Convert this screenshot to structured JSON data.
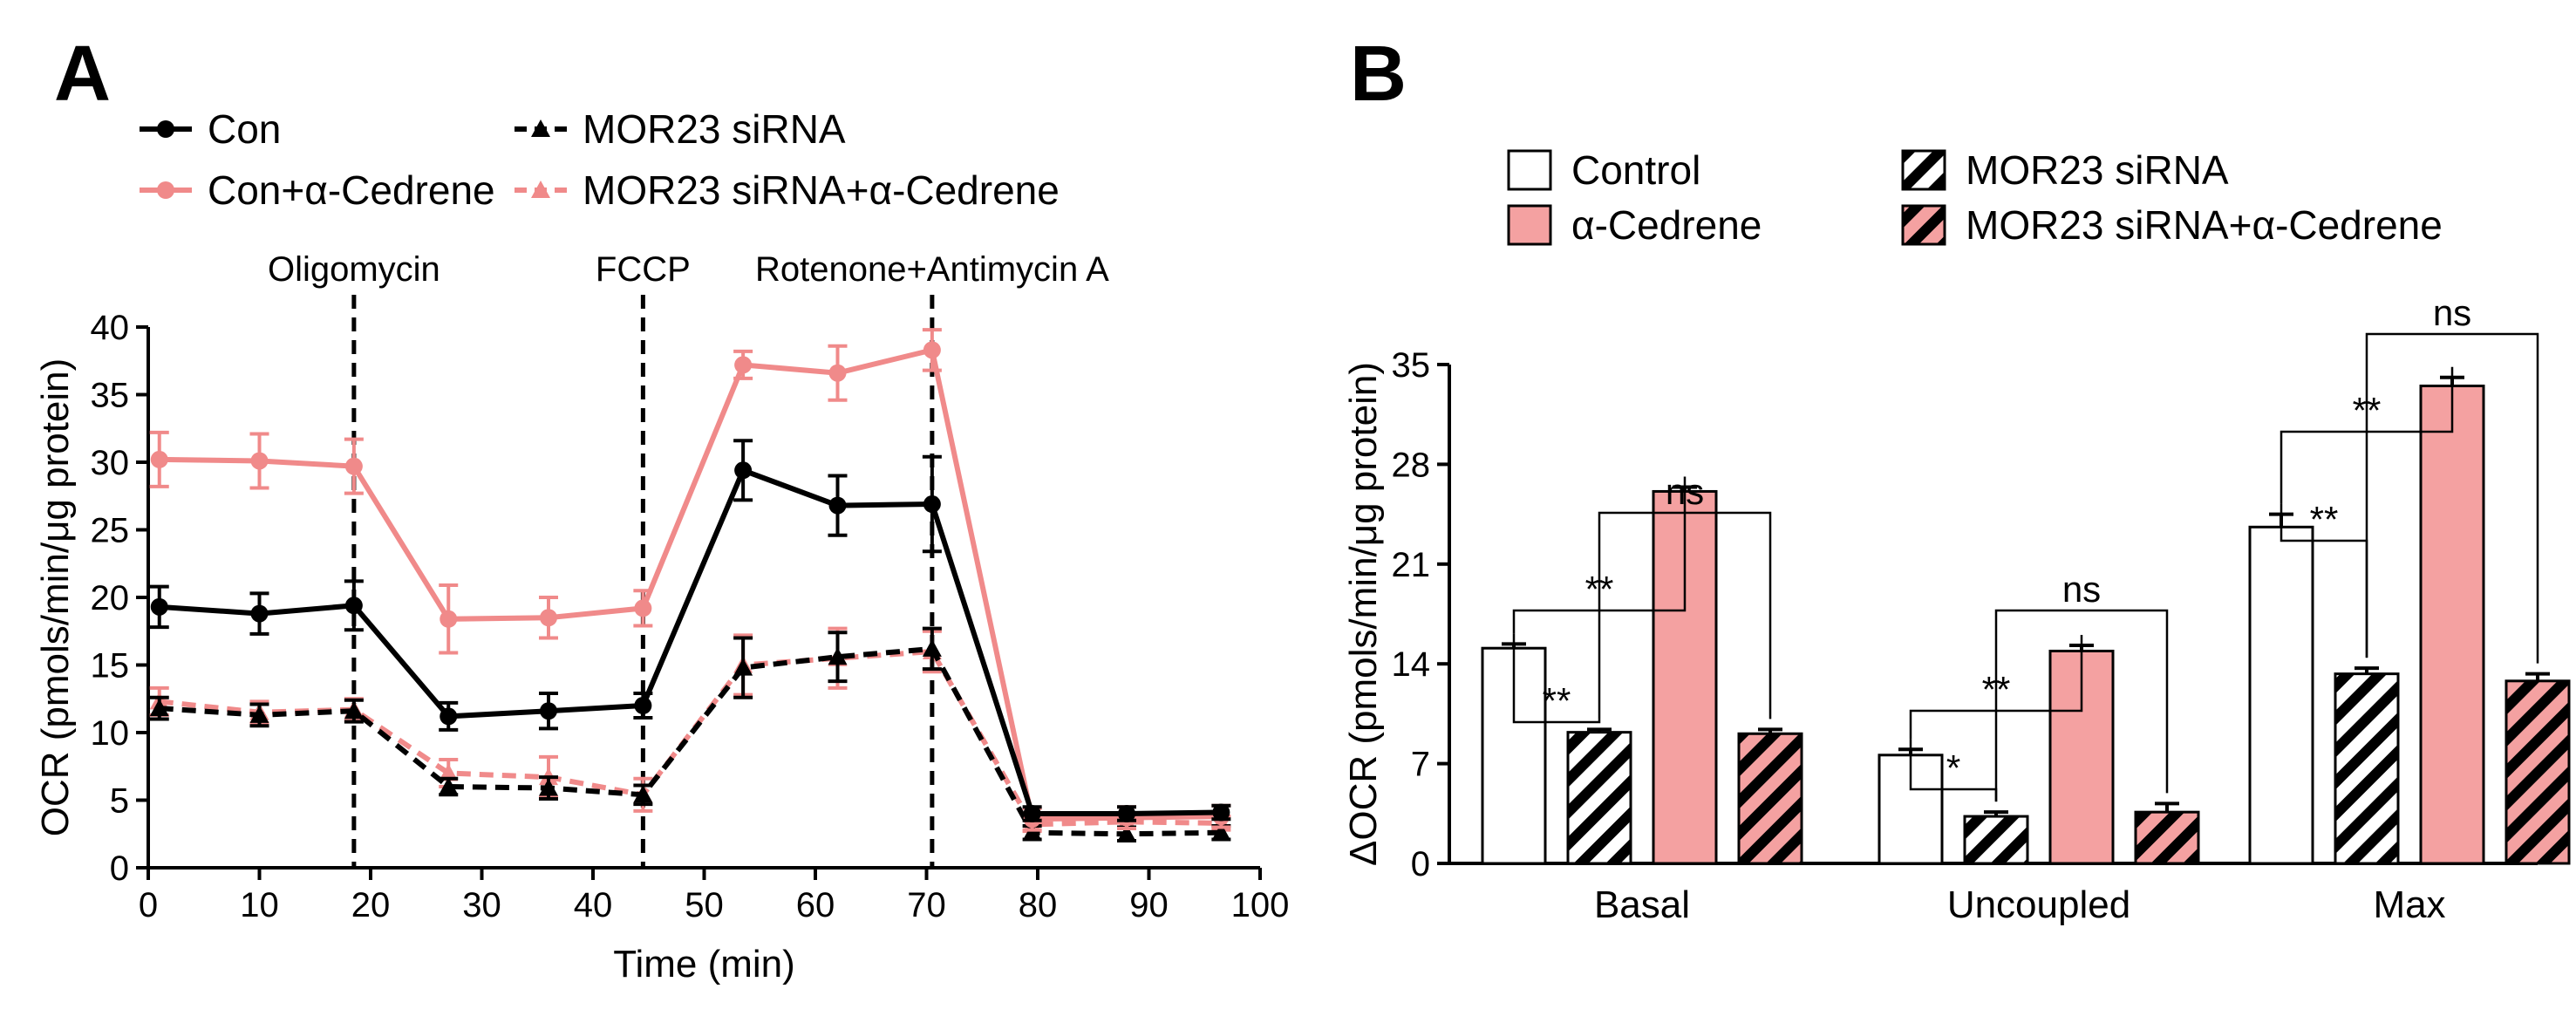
{
  "colors": {
    "black": "#000000",
    "pink": "#f08a8a",
    "pinkFill": "#f4a1a1",
    "white": "#ffffff"
  },
  "chart_data": [
    {
      "panel": "A",
      "type": "line",
      "xlabel": "Time (min)",
      "ylabel": "OCR (pmols/min/μg protein)",
      "xlim": [
        0,
        100
      ],
      "ylim": [
        0,
        40
      ],
      "xticks": [
        "0",
        "10",
        "20",
        "30",
        "40",
        "50",
        "60",
        "70",
        "80",
        "90",
        "100"
      ],
      "yticks": [
        "0",
        "5",
        "10",
        "15",
        "20",
        "25",
        "30",
        "35",
        "40"
      ],
      "x": [
        1,
        10,
        18.5,
        27,
        36,
        44.5,
        53.5,
        62,
        70.5,
        79.5,
        88,
        96.5
      ],
      "annotations": [
        {
          "label": "Oligomycin",
          "x": 18.5
        },
        {
          "label": "FCCP",
          "x": 44.5
        },
        {
          "label": "Rotenone+Antimycin A",
          "x": 70.5
        }
      ],
      "series": [
        {
          "name": "Con",
          "color": "#000000",
          "dashed": false,
          "marker": "circle",
          "values": [
            19.3,
            18.8,
            19.4,
            11.2,
            11.6,
            12.0,
            29.4,
            26.8,
            26.9,
            4.0,
            4.0,
            4.1
          ],
          "errors": [
            1.5,
            1.5,
            1.8,
            1.0,
            1.3,
            0.9,
            2.2,
            2.2,
            3.5,
            0.5,
            0.5,
            0.5
          ]
        },
        {
          "name": "Con+α-Cedrene",
          "color": "#f08a8a",
          "dashed": false,
          "marker": "circle",
          "values": [
            30.2,
            30.1,
            29.7,
            18.4,
            18.5,
            19.2,
            37.2,
            36.6,
            38.3,
            3.6,
            3.7,
            3.8
          ],
          "errors": [
            2.0,
            2.0,
            2.0,
            2.5,
            1.5,
            1.3,
            1.0,
            2.0,
            1.5,
            0.8,
            0.8,
            0.8
          ]
        },
        {
          "name": "MOR23 siRNA",
          "color": "#000000",
          "dashed": true,
          "marker": "triangle",
          "values": [
            11.8,
            11.3,
            11.6,
            6.0,
            5.9,
            5.4,
            14.8,
            15.6,
            16.2,
            2.6,
            2.5,
            2.6
          ],
          "errors": [
            0.8,
            0.8,
            0.8,
            0.6,
            0.8,
            0.7,
            2.2,
            1.8,
            1.5,
            0.5,
            0.5,
            0.5
          ]
        },
        {
          "name": "MOR23 siRNA+α-Cedrene",
          "color": "#f08a8a",
          "dashed": true,
          "marker": "triangle",
          "values": [
            12.3,
            11.5,
            11.7,
            7.0,
            6.7,
            5.4,
            15.0,
            15.5,
            16.0,
            3.2,
            3.4,
            3.3
          ],
          "errors": [
            1.0,
            0.8,
            0.8,
            1.0,
            1.5,
            1.2,
            2.2,
            2.2,
            1.5,
            0.5,
            0.5,
            0.5
          ]
        }
      ]
    },
    {
      "panel": "B",
      "type": "bar",
      "ylabel": "ΔOCR (pmols/min/μg protein)",
      "ylim": [
        0,
        35
      ],
      "yticks": [
        "0",
        "7",
        "14",
        "21",
        "28",
        "35"
      ],
      "categories": [
        "Basal",
        "Uncoupled",
        "Max"
      ],
      "series": [
        {
          "name": "Control",
          "fill": "white",
          "hatched": false,
          "values": [
            15.1,
            7.6,
            23.6
          ],
          "errors": [
            0.3,
            0.4,
            0.9
          ]
        },
        {
          "name": "MOR23 siRNA",
          "fill": "white",
          "hatched": true,
          "values": [
            9.2,
            3.3,
            13.3
          ],
          "errors": [
            0.2,
            0.3,
            0.4
          ]
        },
        {
          "name": "α-Cedrene",
          "fill": "pink",
          "hatched": false,
          "values": [
            26.1,
            14.9,
            33.5
          ],
          "errors": [
            0.3,
            0.4,
            0.6
          ]
        },
        {
          "name": "MOR23 siRNA+α-Cedrene",
          "fill": "pink",
          "hatched": true,
          "values": [
            9.1,
            3.6,
            12.8
          ],
          "errors": [
            0.3,
            0.6,
            0.5
          ]
        }
      ],
      "significance": [
        {
          "category": "Basal",
          "from": "Control",
          "to": "MOR23 siRNA",
          "label": "**"
        },
        {
          "category": "Basal",
          "from": "Control",
          "to": "α-Cedrene",
          "label": "**"
        },
        {
          "category": "Basal",
          "from": "MOR23 siRNA",
          "to": "MOR23 siRNA+α-Cedrene",
          "label": "ns"
        },
        {
          "category": "Uncoupled",
          "from": "Control",
          "to": "MOR23 siRNA",
          "label": "*"
        },
        {
          "category": "Uncoupled",
          "from": "Control",
          "to": "α-Cedrene",
          "label": "**"
        },
        {
          "category": "Uncoupled",
          "from": "MOR23 siRNA",
          "to": "MOR23 siRNA+α-Cedrene",
          "label": "ns"
        },
        {
          "category": "Max",
          "from": "Control",
          "to": "MOR23 siRNA",
          "label": "**"
        },
        {
          "category": "Max",
          "from": "Control",
          "to": "α-Cedrene",
          "label": "**"
        },
        {
          "category": "Max",
          "from": "MOR23 siRNA",
          "to": "MOR23 siRNA+α-Cedrene",
          "label": "ns"
        }
      ]
    }
  ]
}
